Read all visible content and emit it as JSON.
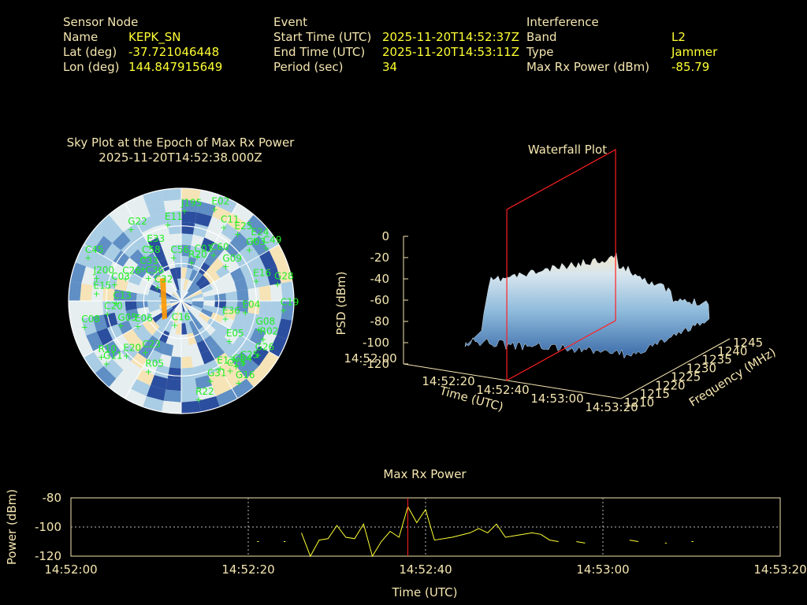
{
  "sensor": {
    "heading": "Sensor Node",
    "name_label": "Name",
    "name_value": "KEPK_SN",
    "lat_label": "Lat (deg)",
    "lat_value": "-37.721046448",
    "lon_label": "Lon (deg)",
    "lon_value": "144.847915649"
  },
  "event": {
    "heading": "Event",
    "start_label": "Start Time (UTC)",
    "start_value": "2025-11-20T14:52:37Z",
    "end_label": "End Time (UTC)",
    "end_value": "2025-11-20T14:53:11Z",
    "period_label": "Period (sec)",
    "period_value": "34"
  },
  "interference": {
    "heading": "Interference",
    "band_label": "Band",
    "band_value": "L2",
    "type_label": "Type",
    "type_value": "Jammer",
    "max_label": "Max Rx Power (dBm)",
    "max_value": "-85.79"
  },
  "colors": {
    "text": "#f5e6b0",
    "value": "#ffff33",
    "sat": "#22ee22",
    "line": "#ffff33",
    "marker": "#ff2020",
    "jammer": "#ff9900"
  },
  "chart_data": [
    {
      "type": "scatter",
      "title": "Sky Plot at the Epoch of Max Rx Power",
      "subtitle": "2025-11-20T14:52:38.000Z",
      "satellites": [
        {
          "id": "J195",
          "az": 2,
          "el": 18
        },
        {
          "id": "E11",
          "az": 350,
          "el": 28
        },
        {
          "id": "E02",
          "az": 20,
          "el": 12
        },
        {
          "id": "C11",
          "az": 30,
          "el": 22
        },
        {
          "id": "E25",
          "az": 40,
          "el": 20
        },
        {
          "id": "E24",
          "az": 50,
          "el": 14
        },
        {
          "id": "G03",
          "az": 53,
          "el": 22
        },
        {
          "id": "C49",
          "az": 58,
          "el": 10
        },
        {
          "id": "G22",
          "az": 325,
          "el": 20
        },
        {
          "id": "C45",
          "az": 295,
          "el": 8
        },
        {
          "id": "J200",
          "az": 285,
          "el": 20
        },
        {
          "id": "C03",
          "az": 284,
          "el": 35
        },
        {
          "id": "C01",
          "az": 20,
          "el": 52
        },
        {
          "id": "C60",
          "az": 35,
          "el": 45
        },
        {
          "id": "R20",
          "az": 15,
          "el": 58
        },
        {
          "id": "C56",
          "az": 350,
          "el": 55
        },
        {
          "id": "C58",
          "az": 320,
          "el": 45
        },
        {
          "id": "C26",
          "az": 292,
          "el": 42
        },
        {
          "id": "C33",
          "az": 310,
          "el": 50
        },
        {
          "id": "C36",
          "az": 305,
          "el": 58
        },
        {
          "id": "E33",
          "az": 330,
          "el": 40
        },
        {
          "id": "G09",
          "az": 52,
          "el": 45
        },
        {
          "id": "E16",
          "az": 75,
          "el": 28
        },
        {
          "id": "G28",
          "az": 80,
          "el": 12
        },
        {
          "id": "E15",
          "az": 275,
          "el": 22
        },
        {
          "id": "C13",
          "az": 268,
          "el": 38
        },
        {
          "id": "C32",
          "az": 300,
          "el": 68
        },
        {
          "id": "E04",
          "az": 100,
          "el": 38
        },
        {
          "id": "G08",
          "az": 110,
          "el": 24
        },
        {
          "id": "C19",
          "az": 95,
          "el": 8
        },
        {
          "id": "R02",
          "az": 115,
          "el": 18
        },
        {
          "id": "G26",
          "az": 125,
          "el": 15
        },
        {
          "id": "E36",
          "az": 112,
          "el": 52
        },
        {
          "id": "E05",
          "az": 130,
          "el": 40
        },
        {
          "id": "C25",
          "az": 135,
          "el": 20
        },
        {
          "id": "G04",
          "az": 140,
          "el": 22
        },
        {
          "id": "C15",
          "az": 145,
          "el": 22
        },
        {
          "id": "E13",
          "az": 150,
          "el": 28
        },
        {
          "id": "G16",
          "az": 145,
          "el": 10
        },
        {
          "id": "G31",
          "az": 160,
          "el": 22
        },
        {
          "id": "R22",
          "az": 170,
          "el": 10
        },
        {
          "id": "C08",
          "az": 255,
          "el": 10
        },
        {
          "id": "C20",
          "az": 260,
          "el": 30
        },
        {
          "id": "G05",
          "az": 248,
          "el": 38
        },
        {
          "id": "R10",
          "az": 235,
          "el": 12
        },
        {
          "id": "E20",
          "az": 225,
          "el": 28
        },
        {
          "id": "R05",
          "az": 205,
          "el": 28
        },
        {
          "id": "G11",
          "az": 230,
          "el": 12
        },
        {
          "id": "C23",
          "az": 215,
          "el": 40
        },
        {
          "id": "E06",
          "az": 240,
          "el": 50
        },
        {
          "id": "C16",
          "az": 195,
          "el": 70
        }
      ]
    },
    {
      "type": "area",
      "title": "Waterfall Plot",
      "xlabel": "Time (UTC)",
      "ylabel": "Frequency (MHz)",
      "zlabel": "PSD (dBm)",
      "x_ticks": [
        "14:52:00",
        "14:52:20",
        "14:52:40",
        "14:53:00",
        "14:53:20"
      ],
      "y_ticks": [
        "1210",
        "1215",
        "1220",
        "1225",
        "1230",
        "1235",
        "1240",
        "1245"
      ],
      "z_ticks": [
        "0",
        "-20",
        "-40",
        "-60",
        "-80",
        "-100",
        "-120"
      ],
      "z_range": [
        -120,
        0
      ],
      "jam_start_s": 15,
      "jam_end_s": 70,
      "marker_time_s": 38
    },
    {
      "type": "line",
      "title": "Max Rx Power",
      "xlabel": "Time (UTC)",
      "ylabel": "Power (dBm)",
      "xlim": [
        0,
        80
      ],
      "ylim": [
        -120,
        -80
      ],
      "x_ticks": [
        "14:52:00",
        "14:52:20",
        "14:52:40",
        "14:53:00",
        "14:53:20"
      ],
      "y_ticks": [
        "-80",
        "-100",
        "-120"
      ],
      "marker_time_s": 38,
      "series": [
        {
          "values": [
            [
              21,
              -110
            ],
            [
              21.2,
              -110
            ]
          ]
        },
        {
          "values": [
            [
              24,
              -110
            ],
            [
              24.2,
              -110
            ]
          ]
        },
        {
          "values": [
            [
              26,
              -104
            ],
            [
              27,
              -120
            ],
            [
              28,
              -109
            ],
            [
              29,
              -108
            ],
            [
              30,
              -99
            ],
            [
              31,
              -107
            ],
            [
              32,
              -108
            ],
            [
              33,
              -98
            ],
            [
              34,
              -120
            ],
            [
              35,
              -110
            ],
            [
              36,
              -103
            ],
            [
              37,
              -107
            ],
            [
              38,
              -86
            ],
            [
              39,
              -97
            ],
            [
              40,
              -88
            ],
            [
              41,
              -109
            ],
            [
              43,
              -107
            ],
            [
              45,
              -104
            ],
            [
              46,
              -101
            ],
            [
              47,
              -104
            ],
            [
              48,
              -98
            ],
            [
              49,
              -107
            ],
            [
              50,
              -106
            ],
            [
              51,
              -105
            ],
            [
              52,
              -104
            ],
            [
              53,
              -105
            ],
            [
              54,
              -109
            ],
            [
              55,
              -110
            ]
          ]
        },
        {
          "values": [
            [
              57,
              -110
            ],
            [
              58,
              -111
            ]
          ]
        },
        {
          "values": [
            [
              63,
              -109
            ],
            [
              64,
              -110
            ]
          ]
        },
        {
          "values": [
            [
              67,
              -111
            ],
            [
              67.2,
              -111
            ]
          ]
        },
        {
          "values": [
            [
              70,
              -110
            ],
            [
              70.2,
              -110
            ]
          ]
        }
      ]
    }
  ]
}
